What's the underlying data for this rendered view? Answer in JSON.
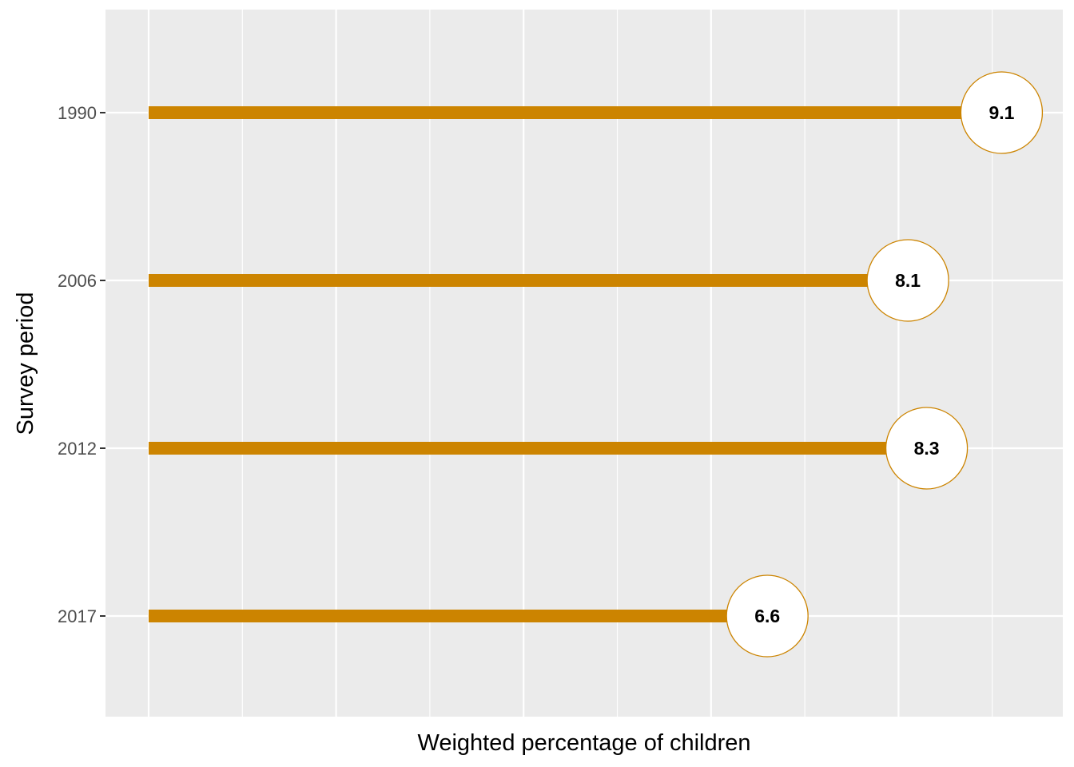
{
  "chart_data": {
    "type": "bar",
    "orientation": "horizontal",
    "style": "lollipop",
    "categories": [
      "1990",
      "2006",
      "2012",
      "2017"
    ],
    "values": [
      9.1,
      8.1,
      8.3,
      6.6
    ],
    "value_labels": [
      "9.1",
      "8.1",
      "8.3",
      "6.6"
    ],
    "title": "",
    "xlabel": "Weighted percentage of children",
    "ylabel": "Survey period",
    "xlim": [
      0,
      9.5
    ],
    "x_tick_labels_shown": false,
    "grid": true,
    "legend": "none",
    "colors": {
      "stem": "#CC8400",
      "marker_fill": "#FFFFFF",
      "marker_stroke": "#CC8400",
      "panel_background": "#EBEBEB",
      "grid": "#FFFFFF"
    }
  }
}
